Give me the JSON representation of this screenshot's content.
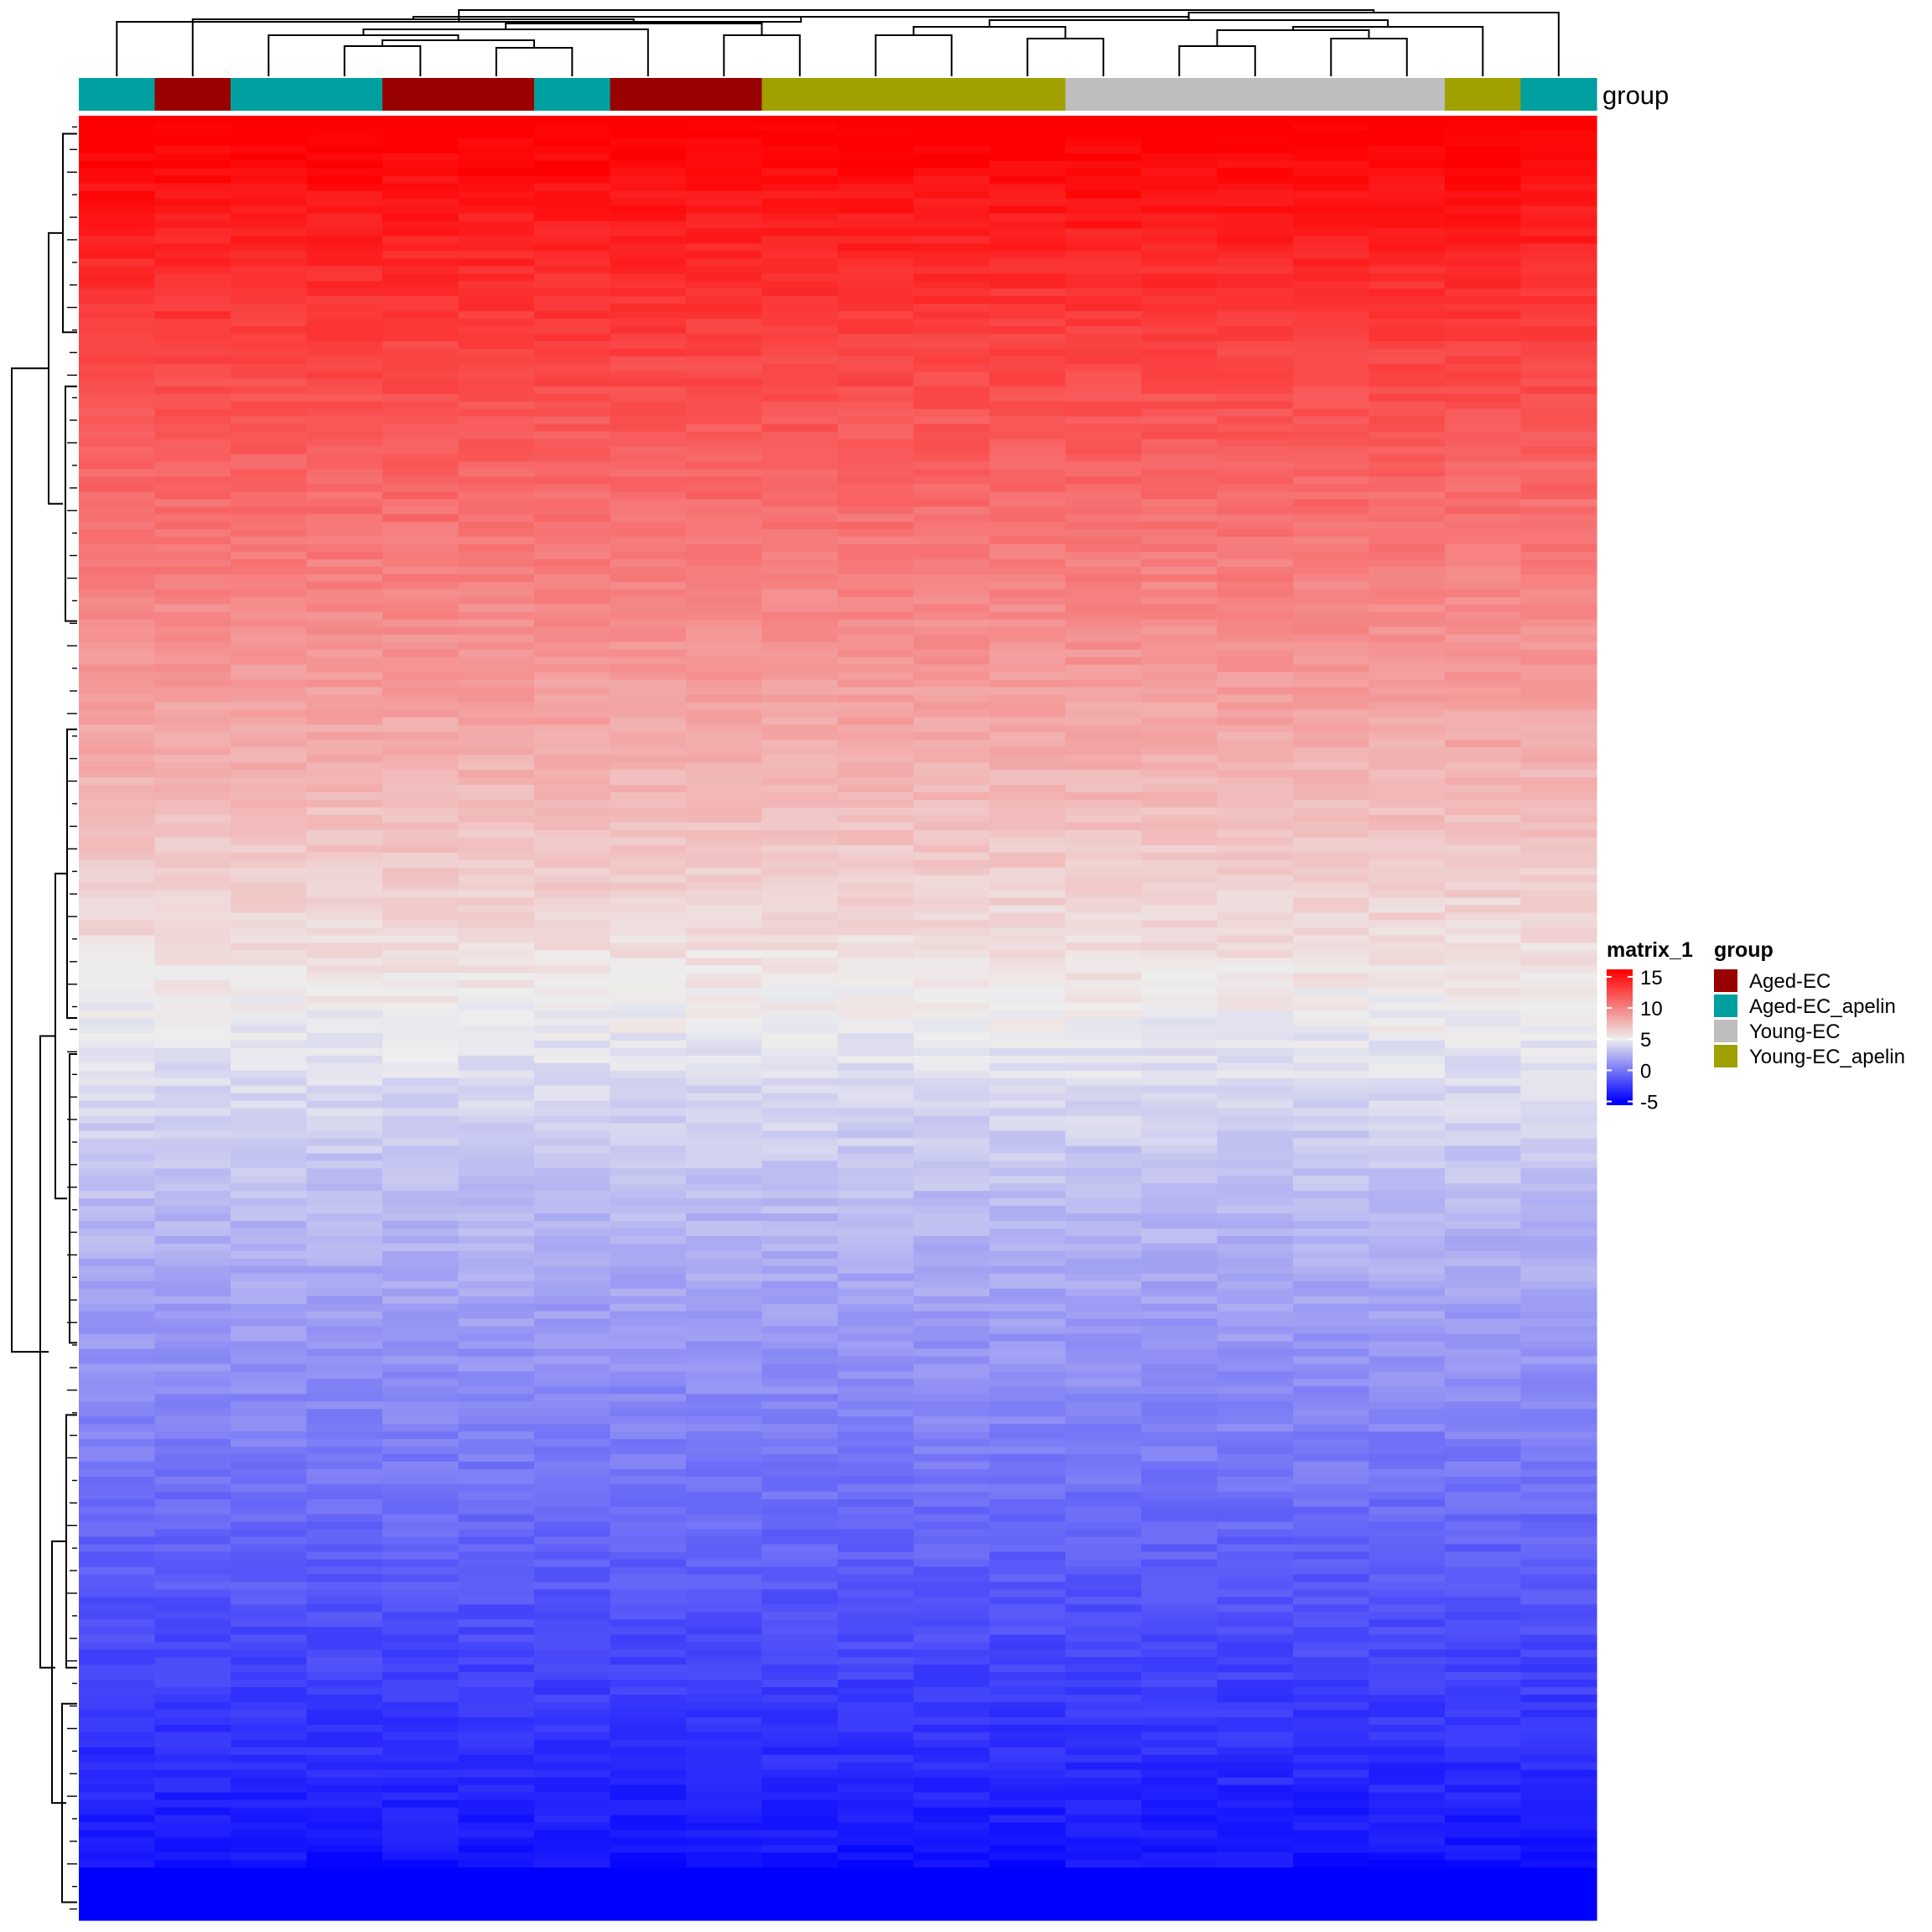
{
  "chart_data": {
    "type": "heatmap",
    "annotation_name": "group",
    "columns": [
      {
        "group": "Aged-EC_apelin"
      },
      {
        "group": "Aged-EC"
      },
      {
        "group": "Aged-EC_apelin"
      },
      {
        "group": "Aged-EC_apelin"
      },
      {
        "group": "Aged-EC"
      },
      {
        "group": "Aged-EC"
      },
      {
        "group": "Aged-EC_apelin"
      },
      {
        "group": "Aged-EC"
      },
      {
        "group": "Aged-EC"
      },
      {
        "group": "Young-EC_apelin"
      },
      {
        "group": "Young-EC_apelin"
      },
      {
        "group": "Young-EC_apelin"
      },
      {
        "group": "Young-EC_apelin"
      },
      {
        "group": "Young-EC"
      },
      {
        "group": "Young-EC"
      },
      {
        "group": "Young-EC"
      },
      {
        "group": "Young-EC"
      },
      {
        "group": "Young-EC"
      },
      {
        "group": "Young-EC_apelin"
      },
      {
        "group": "Aged-EC_apelin"
      }
    ],
    "row_count": 240,
    "value_profile": {
      "top": 16.5,
      "bottom": -4.8,
      "row_noise": 0.6
    },
    "color_scale": {
      "title": "matrix_1",
      "breaks": [
        15,
        10,
        5,
        0,
        -5
      ],
      "stops": [
        {
          "value": -5,
          "color": "#0000ff"
        },
        {
          "value": 5,
          "color": "#eeeeee"
        },
        {
          "value": 16,
          "color": "#ff0000"
        }
      ]
    },
    "legend": {
      "title": "group",
      "entries": [
        {
          "label": "Aged-EC",
          "color": "#990000"
        },
        {
          "label": "Aged-EC_apelin",
          "color": "#00A0A0"
        },
        {
          "label": "Young-EC",
          "color": "#BEBEBE"
        },
        {
          "label": "Young-EC_apelin",
          "color": "#A0A000"
        }
      ]
    },
    "column_dendrogram": true,
    "row_dendrogram": true
  }
}
